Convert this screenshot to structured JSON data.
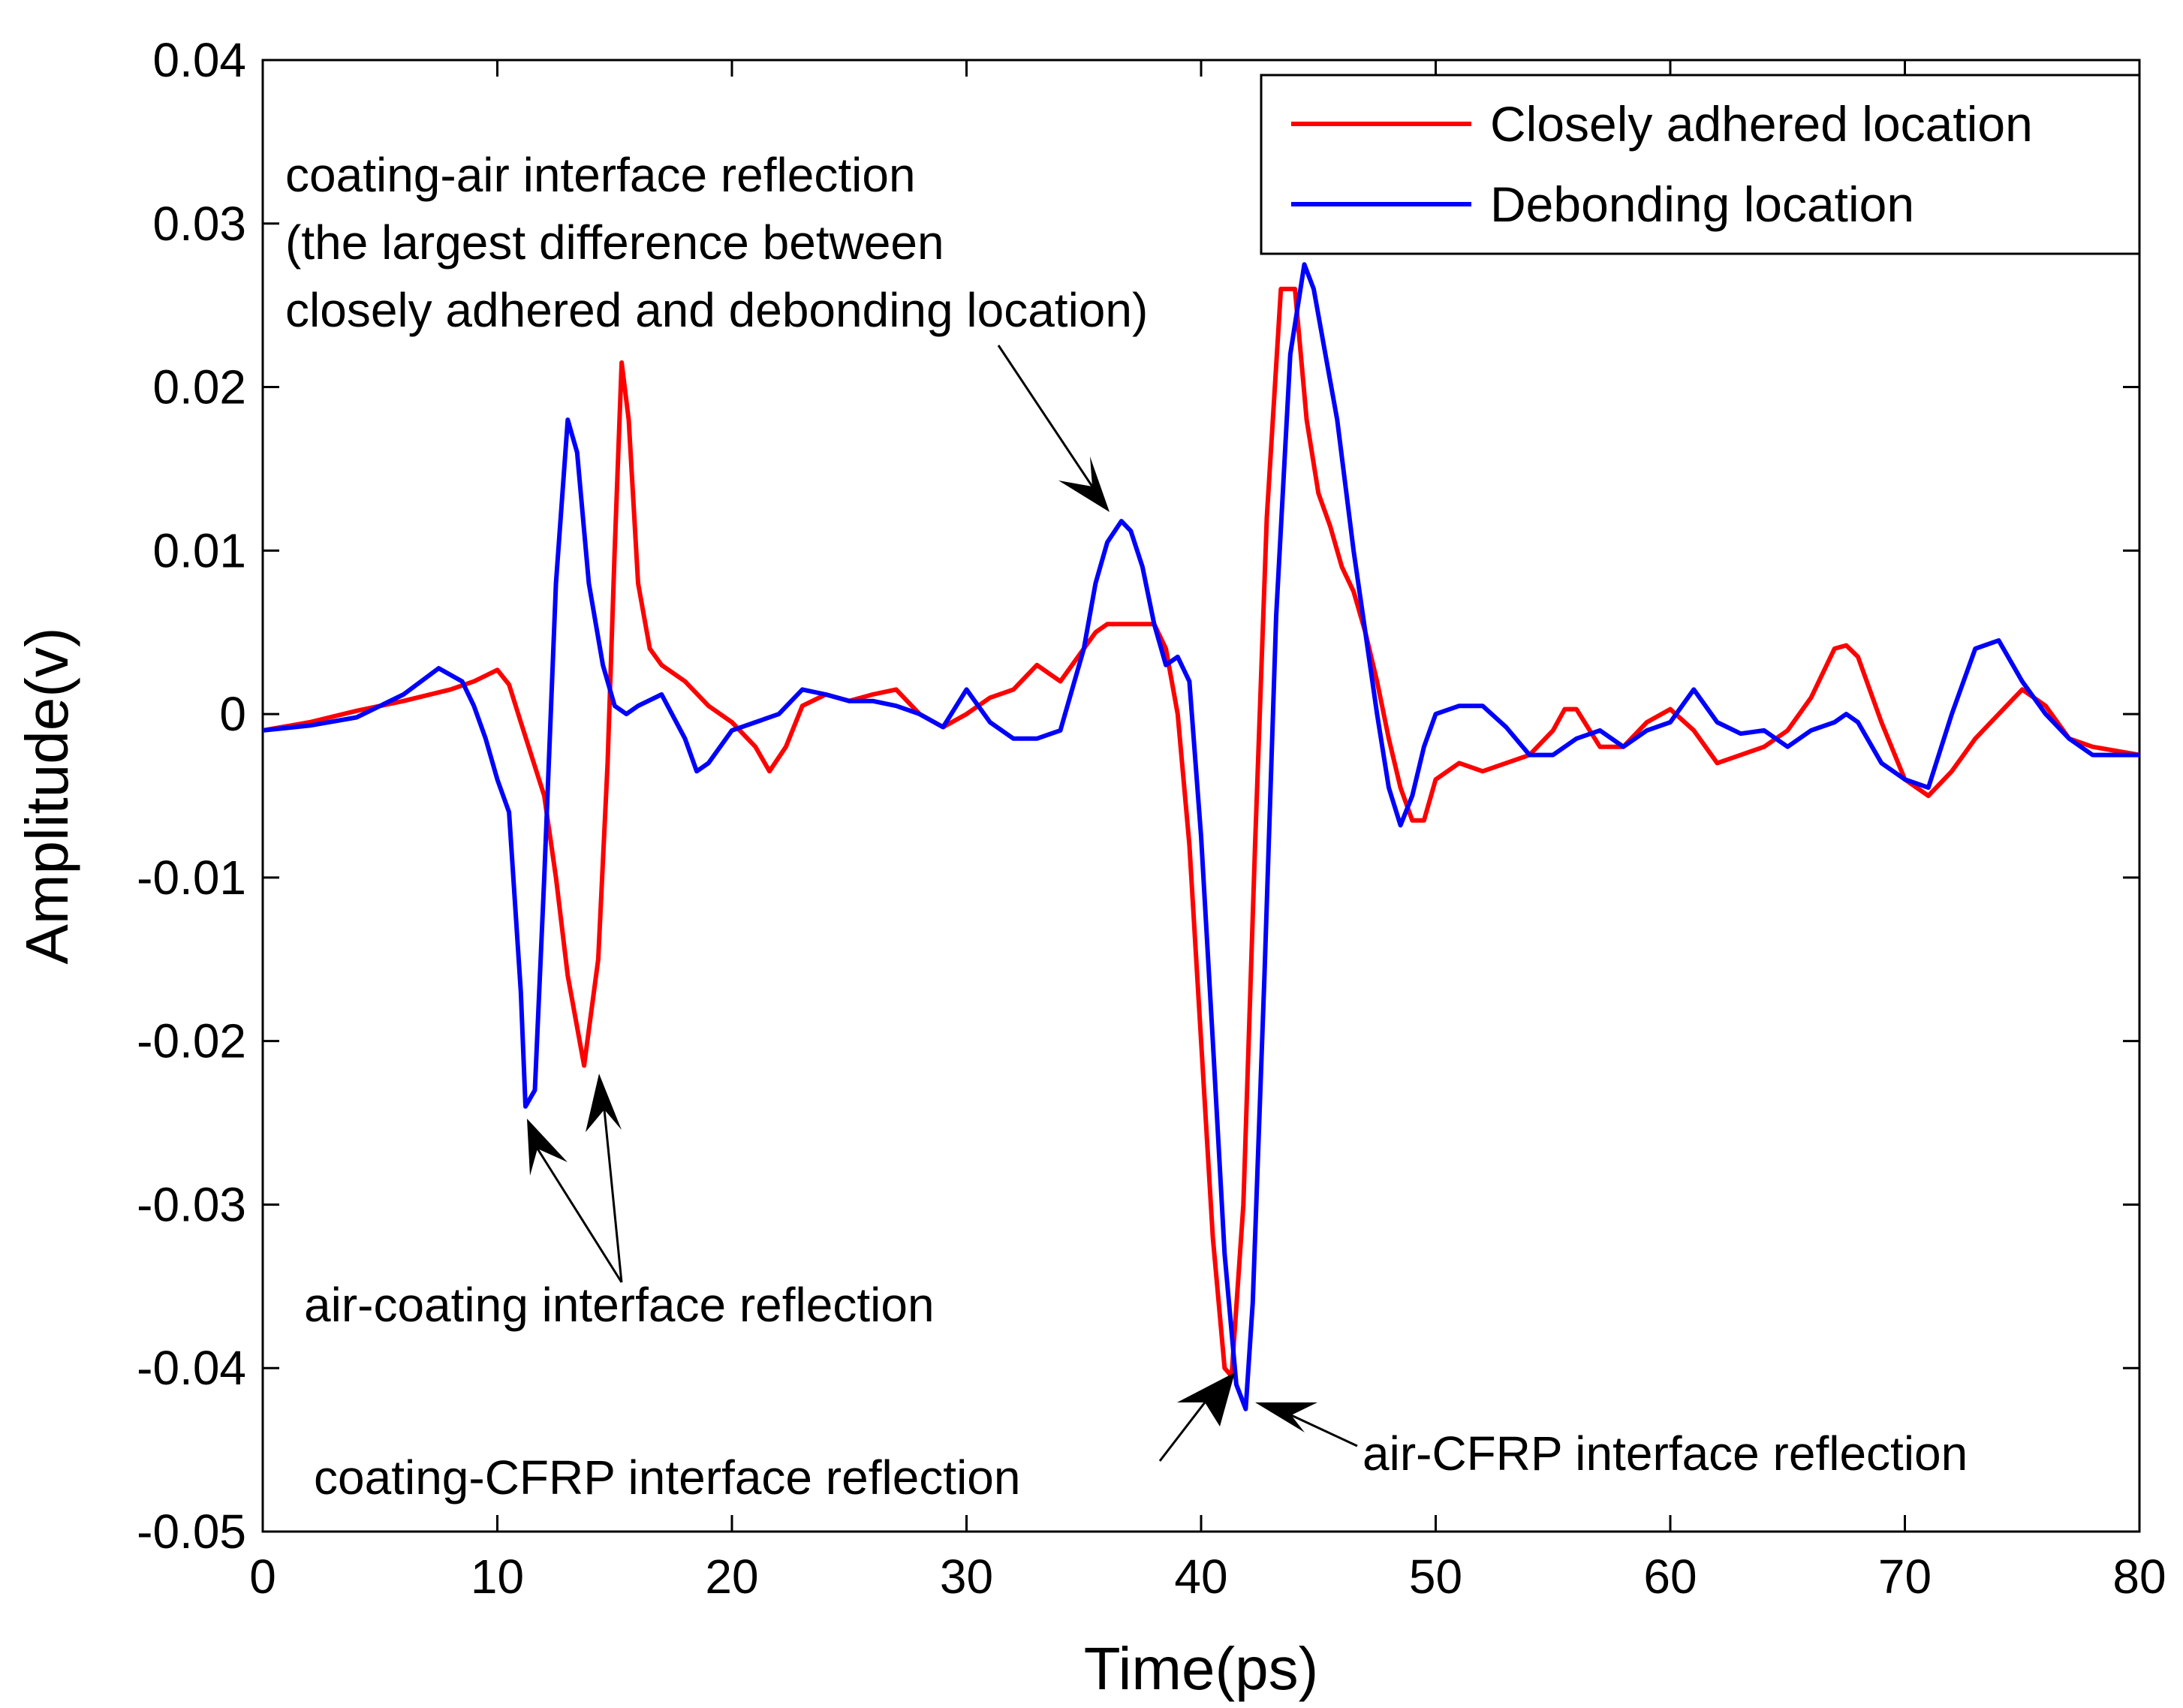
{
  "chart_data": {
    "type": "line",
    "title": "",
    "xlabel": "Time(ps)",
    "ylabel": "Amplitude(v)",
    "xlim": [
      0,
      80
    ],
    "ylim": [
      -0.05,
      0.04
    ],
    "xticks": [
      0,
      10,
      20,
      30,
      40,
      50,
      60,
      70,
      80
    ],
    "xtick_labels": [
      "0",
      "10",
      "20",
      "30",
      "40",
      "50",
      "60",
      "70",
      "80"
    ],
    "yticks": [
      0.04,
      0.03,
      0.02,
      0.01,
      0,
      -0.01,
      -0.02,
      -0.03,
      -0.04,
      -0.05
    ],
    "ytick_labels": [
      "0.04",
      "0.03",
      "0.02",
      "0.01",
      "0",
      "-0.01",
      "-0.02",
      "-0.03",
      "-0.04",
      "-0.05"
    ],
    "grid": false,
    "legend_position": "top-right",
    "series": [
      {
        "name": "Closely adhered location",
        "color": "#ff0000",
        "x": [
          0,
          2,
          4,
          6,
          8,
          9,
          10,
          10.5,
          11,
          12,
          12.5,
          13,
          13.7,
          14.3,
          14.7,
          15,
          15.3,
          15.6,
          16,
          16.5,
          17,
          18,
          19,
          20,
          21,
          21.6,
          22.3,
          23,
          24,
          25,
          26,
          27,
          28,
          29,
          30,
          31,
          32,
          33,
          34,
          35,
          35.5,
          36,
          37,
          38,
          38.5,
          39,
          39.5,
          40,
          40.5,
          41,
          41.3,
          41.8,
          42.3,
          42.8,
          43.4,
          44,
          44.5,
          45,
          45.5,
          46,
          46.5,
          47,
          47.5,
          48,
          48.5,
          49,
          49.5,
          50,
          51,
          52,
          53,
          54,
          55,
          55.5,
          56,
          57,
          58,
          59,
          60,
          61,
          62,
          63,
          64,
          65,
          66,
          67,
          67.5,
          68,
          69,
          70,
          71,
          72,
          73,
          74,
          75,
          76,
          77,
          78,
          80
        ],
        "values": [
          -0.001,
          -0.0005,
          0.0002,
          0.0008,
          0.0015,
          0.002,
          0.0027,
          0.0018,
          -0.0005,
          -0.005,
          -0.01,
          -0.016,
          -0.0215,
          -0.015,
          -0.003,
          0.01,
          0.0215,
          0.018,
          0.008,
          0.004,
          0.003,
          0.002,
          0.0005,
          -0.0005,
          -0.002,
          -0.0035,
          -0.002,
          0.0005,
          0.0012,
          0.0008,
          0.0012,
          0.0015,
          0.0,
          -0.0008,
          0.0,
          0.001,
          0.0015,
          0.003,
          0.002,
          0.004,
          0.005,
          0.0055,
          0.0055,
          0.0055,
          0.004,
          0.0,
          -0.008,
          -0.02,
          -0.032,
          -0.04,
          -0.0405,
          -0.03,
          -0.008,
          0.012,
          0.026,
          0.026,
          0.018,
          0.0135,
          0.0115,
          0.009,
          0.0075,
          0.005,
          0.002,
          -0.0015,
          -0.0045,
          -0.0065,
          -0.0065,
          -0.004,
          -0.003,
          -0.0035,
          -0.003,
          -0.0025,
          -0.001,
          0.0003,
          0.0003,
          -0.002,
          -0.002,
          -0.0005,
          0.0003,
          -0.001,
          -0.003,
          -0.0025,
          -0.002,
          -0.001,
          0.001,
          0.004,
          0.0042,
          0.0035,
          -0.0005,
          -0.004,
          -0.005,
          -0.0035,
          -0.0015,
          0.0,
          0.0015,
          0.0005,
          -0.0015,
          -0.002,
          -0.0025
        ]
      },
      {
        "name": "Debonding location",
        "color": "#0000ff",
        "x": [
          0,
          2,
          4,
          6,
          7.5,
          8.5,
          9,
          9.5,
          10,
          10.5,
          11,
          11.2,
          11.6,
          12,
          12.5,
          13,
          13.4,
          13.9,
          14.5,
          15,
          15.5,
          16,
          17,
          18,
          18.5,
          19,
          20,
          21,
          22,
          23,
          24,
          25,
          26,
          27,
          28,
          29,
          30,
          31,
          32,
          33,
          34,
          35,
          35.5,
          36,
          36.6,
          37,
          37.5,
          38,
          38.5,
          39,
          39.5,
          40,
          40.5,
          41,
          41.5,
          41.9,
          42.2,
          42.7,
          43.2,
          43.8,
          44.4,
          44.8,
          45.3,
          45.8,
          46.5,
          47,
          47.5,
          48,
          48.5,
          49,
          49.5,
          50,
          51,
          52,
          53,
          54,
          55,
          56,
          57,
          58,
          59,
          60,
          61,
          62,
          63,
          64,
          65,
          66,
          67,
          67.5,
          68,
          69,
          70,
          71,
          72,
          73,
          74,
          75,
          76,
          77,
          78,
          80
        ],
        "values": [
          -0.001,
          -0.0007,
          -0.0002,
          0.0012,
          0.0028,
          0.002,
          0.0005,
          -0.0015,
          -0.004,
          -0.006,
          -0.017,
          -0.024,
          -0.023,
          -0.01,
          0.008,
          0.018,
          0.016,
          0.008,
          0.003,
          0.0005,
          0.0,
          0.0005,
          0.0012,
          -0.0015,
          -0.0035,
          -0.003,
          -0.001,
          -0.0005,
          0.0,
          0.0015,
          0.0012,
          0.0008,
          0.0008,
          0.0005,
          0.0,
          -0.0008,
          0.0015,
          -0.0005,
          -0.0015,
          -0.0015,
          -0.001,
          0.004,
          0.008,
          0.0105,
          0.0118,
          0.0112,
          0.009,
          0.0055,
          0.003,
          0.0035,
          0.002,
          -0.0075,
          -0.02,
          -0.033,
          -0.041,
          -0.0425,
          -0.036,
          -0.016,
          0.006,
          0.022,
          0.0275,
          0.026,
          0.022,
          0.018,
          0.01,
          0.005,
          0.0,
          -0.0045,
          -0.0068,
          -0.005,
          -0.002,
          0.0,
          0.0005,
          0.0005,
          -0.0008,
          -0.0025,
          -0.0025,
          -0.0015,
          -0.001,
          -0.002,
          -0.001,
          -0.0005,
          0.0015,
          -0.0005,
          -0.0012,
          -0.001,
          -0.002,
          -0.001,
          -0.0005,
          0.0,
          -0.0005,
          -0.003,
          -0.004,
          -0.0045,
          0.0,
          0.004,
          0.0045,
          0.002,
          0.0,
          -0.0015,
          -0.0025,
          -0.0025
        ]
      }
    ],
    "annotations": [
      {
        "lines": [
          "coating-air interface reflection",
          "(the largest difference between",
          "closely adhered and debonding location)"
        ],
        "points_to": [
          [
            36.6,
            0.0118
          ]
        ]
      },
      {
        "lines": [
          "air-coating interface reflection"
        ],
        "points_to": [
          [
            11.2,
            -0.024
          ],
          [
            13.7,
            -0.0215
          ]
        ]
      },
      {
        "lines": [
          "coating-CFRP interface reflection"
        ],
        "points_to": [
          [
            41.3,
            -0.0405
          ]
        ]
      },
      {
        "lines": [
          "air-CFRP interface reflection"
        ],
        "points_to": [
          [
            42.2,
            -0.0425
          ]
        ]
      }
    ]
  }
}
